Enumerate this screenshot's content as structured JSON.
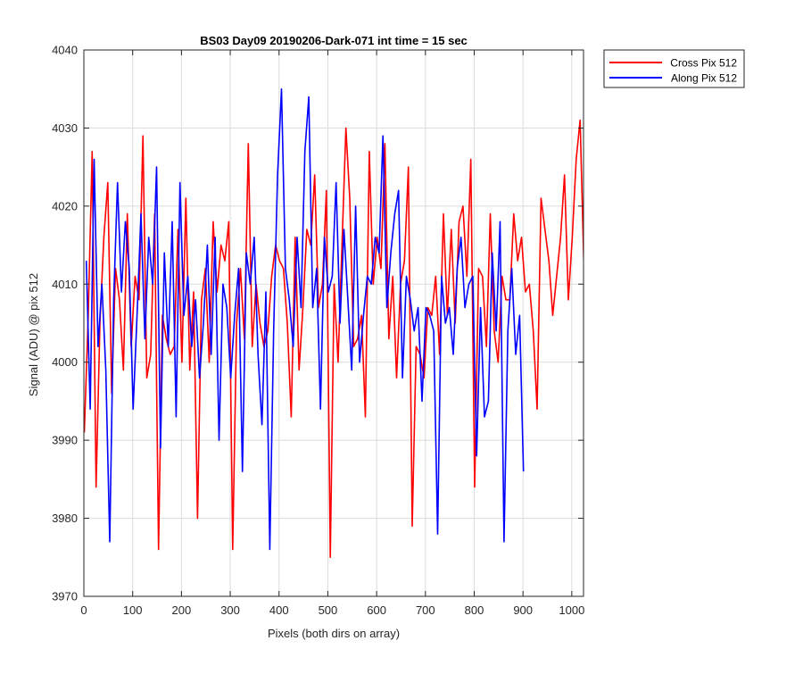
{
  "chart_data": {
    "type": "line",
    "title": "BS03 Day09 20190206-Dark-071 int time = 15 sec",
    "xlabel": "Pixels (both dirs on array)",
    "ylabel": "Signal (ADU) @ pix 512",
    "xlim": [
      0,
      1024
    ],
    "ylim": [
      3970,
      4040
    ],
    "xticks": [
      0,
      100,
      200,
      300,
      400,
      500,
      600,
      700,
      800,
      900,
      1000
    ],
    "yticks": [
      3970,
      3980,
      3990,
      4000,
      4010,
      4020,
      4030,
      4040
    ],
    "xtick_labels": [
      "0",
      "100",
      "200",
      "300",
      "400",
      "500",
      "600",
      "700",
      "800",
      "900",
      "1000"
    ],
    "ytick_labels": [
      "3970",
      "3980",
      "3990",
      "4000",
      "4010",
      "4020",
      "4030",
      "4040"
    ],
    "grid": true,
    "legend_position": "outside-top-right",
    "series": [
      {
        "name": "Cross Pix 512",
        "color": "#ff0000",
        "x_start": 1,
        "x_step": 8,
        "values": [
          3991,
          4006,
          4027,
          3984,
          4005,
          4016,
          4023,
          3996,
          4012,
          4008,
          3999,
          4019,
          4002,
          4011,
          4008,
          4029,
          3998,
          4001,
          4019,
          3976,
          4006,
          4003,
          4001,
          4002,
          4017,
          4000,
          4021,
          3999,
          4009,
          3980,
          4008,
          4012,
          4000,
          4018,
          4009,
          4015,
          4013,
          4018,
          3976,
          4005,
          4012,
          4003,
          4028,
          4002,
          4010,
          4005,
          4002,
          4004,
          4011,
          4015,
          4013,
          4012,
          4005,
          3993,
          4016,
          3999,
          4007,
          4017,
          4015,
          4024,
          4007,
          4010,
          4022,
          3975,
          4010,
          4000,
          4015,
          4030,
          4021,
          4002,
          4003,
          4006,
          3993,
          4027,
          4010,
          4016,
          4012,
          4028,
          4003,
          4011,
          3998,
          4010,
          4013,
          4025,
          3979,
          4002,
          4001,
          3998,
          4007,
          4006,
          4011,
          4001,
          4019,
          4006,
          4017,
          4005,
          4018,
          4020,
          4011,
          4026,
          3984,
          4012,
          4011,
          4002,
          4019,
          4004,
          4000,
          4011,
          4008,
          4008,
          4019,
          4013,
          4016,
          4009,
          4010,
          4004,
          3994,
          4021,
          4017,
          4013,
          4006,
          4011,
          4016,
          4024,
          4008,
          4016,
          4026,
          4031,
          4012,
          4010
        ]
      },
      {
        "name": "Along Pix 512",
        "color": "#0000ff",
        "x_start": 5,
        "x_step": 8,
        "values": [
          4013,
          3994,
          4026,
          4002,
          4010,
          3999,
          3977,
          4008,
          4023,
          4009,
          4018,
          4012,
          3994,
          4006,
          4019,
          4003,
          4016,
          4010,
          4025,
          3989,
          4014,
          4002,
          4018,
          3993,
          4023,
          4006,
          4011,
          4002,
          4008,
          3998,
          4005,
          4015,
          4001,
          4016,
          3990,
          4010,
          4007,
          3998,
          4006,
          4012,
          3986,
          4014,
          4010,
          4016,
          4001,
          3992,
          4009,
          3976,
          4004,
          4024,
          4035,
          4012,
          4008,
          4002,
          4016,
          4007,
          4027,
          4034,
          4007,
          4012,
          3994,
          4016,
          4009,
          4011,
          4023,
          4005,
          4017,
          4008,
          3999,
          4020,
          4000,
          4006,
          4011,
          4010,
          4016,
          4014,
          4029,
          4007,
          4014,
          4019,
          4022,
          3998,
          4011,
          4008,
          4004,
          4007,
          3995,
          4007,
          4006,
          4004,
          3978,
          4011,
          4005,
          4007,
          4001,
          4012,
          4016,
          4007,
          4010,
          4011,
          3988,
          4007,
          3993,
          3995,
          4014,
          4004,
          4018,
          3977,
          4004,
          4012,
          4001,
          4006,
          3986
        ]
      }
    ]
  }
}
